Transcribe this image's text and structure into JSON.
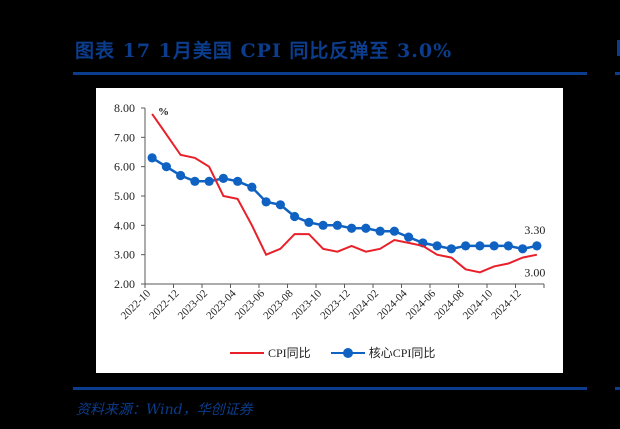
{
  "header": {
    "title": "图表 17   1月美国 CPI 同比反弹至 3.0%"
  },
  "source": {
    "text": "资料来源：Wind，华创证券"
  },
  "legend": {
    "items": [
      {
        "label": "CPI同比",
        "color": "#e8202a",
        "marker": "none"
      },
      {
        "label": "核心CPI同比",
        "color": "#0f62c2",
        "marker": "circle"
      }
    ]
  },
  "colors": {
    "title_blue": "#0b3d8c",
    "cpi_red": "#e8202a",
    "core_blue": "#0f62c2"
  },
  "chart_data": {
    "type": "line",
    "title": "1月美国 CPI 同比反弹至 3.0%",
    "xlabel": "",
    "ylabel": "%",
    "ylim": [
      2.0,
      8.0
    ],
    "yticks": [
      "2.00",
      "3.00",
      "4.00",
      "5.00",
      "6.00",
      "7.00",
      "8.00"
    ],
    "grid": false,
    "legend_position": "bottom",
    "x": [
      "2022-10",
      "2022-11",
      "2022-12",
      "2023-01",
      "2023-02",
      "2023-03",
      "2023-04",
      "2023-05",
      "2023-06",
      "2023-07",
      "2023-08",
      "2023-09",
      "2023-10",
      "2023-11",
      "2023-12",
      "2024-01",
      "2024-02",
      "2024-03",
      "2024-04",
      "2024-05",
      "2024-06",
      "2024-07",
      "2024-08",
      "2024-09",
      "2024-10",
      "2024-11",
      "2024-12",
      "2025-01"
    ],
    "xtick_labels": [
      "2022-10",
      "2022-12",
      "2023-02",
      "2023-04",
      "2023-06",
      "2023-08",
      "2023-10",
      "2023-12",
      "2024-02",
      "2024-04",
      "2024-06",
      "2024-08",
      "2024-10",
      "2024-12"
    ],
    "series": [
      {
        "name": "CPI同比",
        "values": [
          7.8,
          7.1,
          6.4,
          6.3,
          6.0,
          5.0,
          4.9,
          4.0,
          3.0,
          3.2,
          3.7,
          3.7,
          3.2,
          3.1,
          3.3,
          3.1,
          3.2,
          3.5,
          3.4,
          3.3,
          3.0,
          2.9,
          2.5,
          2.4,
          2.6,
          2.7,
          2.9,
          3.0
        ]
      },
      {
        "name": "核心CPI同比",
        "values": [
          6.3,
          6.0,
          5.7,
          5.5,
          5.5,
          5.6,
          5.5,
          5.3,
          4.8,
          4.7,
          4.3,
          4.1,
          4.0,
          4.0,
          3.9,
          3.9,
          3.8,
          3.8,
          3.6,
          3.4,
          3.3,
          3.2,
          3.3,
          3.3,
          3.3,
          3.3,
          3.2,
          3.3
        ]
      }
    ],
    "annotations": [
      {
        "text": "3.30",
        "series": "核心CPI同比",
        "point": "2025-01"
      },
      {
        "text": "3.00",
        "series": "CPI同比",
        "point": "2025-01"
      },
      {
        "text": "%",
        "position": "top-left of plot"
      }
    ]
  }
}
